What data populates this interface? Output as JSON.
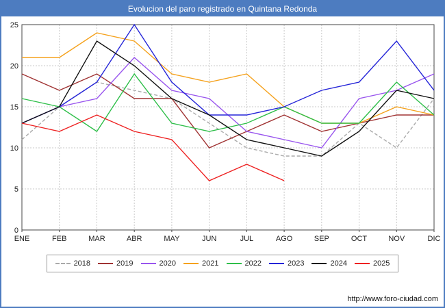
{
  "title": "Evolucion del paro registrado en Quintana Redonda",
  "footer": {
    "url": "http://www.foro-ciudad.com"
  },
  "colors": {
    "title_bar": "#4d7cc0",
    "frame_border": "#4d7cc0",
    "grid": "#c8c8c8",
    "axis": "#444444",
    "text": "#222222"
  },
  "chart_data": {
    "type": "line",
    "title": "Evolucion del paro registrado en Quintana Redonda",
    "xlabel": "",
    "ylabel": "",
    "categories": [
      "ENE",
      "FEB",
      "MAR",
      "ABR",
      "MAY",
      "JUN",
      "JUL",
      "AGO",
      "SEP",
      "OCT",
      "NOV",
      "DIC"
    ],
    "ylim": [
      0,
      25
    ],
    "yticks": [
      0,
      5,
      10,
      15,
      20,
      25
    ],
    "grid": true,
    "legend_position": "bottom",
    "series": [
      {
        "name": "2018",
        "color": "#aaaaaa",
        "dash": "5,3",
        "values": [
          11,
          15,
          18,
          17,
          16,
          13,
          10,
          9,
          9,
          13,
          10,
          16
        ]
      },
      {
        "name": "2019",
        "color": "#a03333",
        "values": [
          19,
          17,
          19,
          16,
          16,
          10,
          12,
          14,
          12,
          13,
          14,
          14
        ]
      },
      {
        "name": "2020",
        "color": "#9955ee",
        "values": [
          13,
          15,
          16,
          21,
          17,
          16,
          12,
          11,
          10,
          16,
          17,
          19
        ]
      },
      {
        "name": "2021",
        "color": "#f5a21d",
        "values": [
          21,
          21,
          24,
          23,
          19,
          18,
          19,
          15,
          13,
          13,
          15,
          14
        ]
      },
      {
        "name": "2022",
        "color": "#2fbf4a",
        "values": [
          16,
          15,
          12,
          19,
          13,
          12,
          13,
          15,
          13,
          13,
          18,
          14
        ]
      },
      {
        "name": "2023",
        "color": "#2525d8",
        "values": [
          13,
          15,
          18,
          25,
          18,
          14,
          14,
          15,
          17,
          18,
          23,
          17
        ]
      },
      {
        "name": "2024",
        "color": "#111111",
        "values": [
          13,
          15,
          23,
          20,
          16,
          14,
          11,
          10,
          9,
          12,
          17,
          16
        ]
      },
      {
        "name": "2025",
        "color": "#ee2222",
        "values": [
          13,
          12,
          14,
          12,
          11,
          6,
          8,
          6
        ]
      }
    ]
  }
}
